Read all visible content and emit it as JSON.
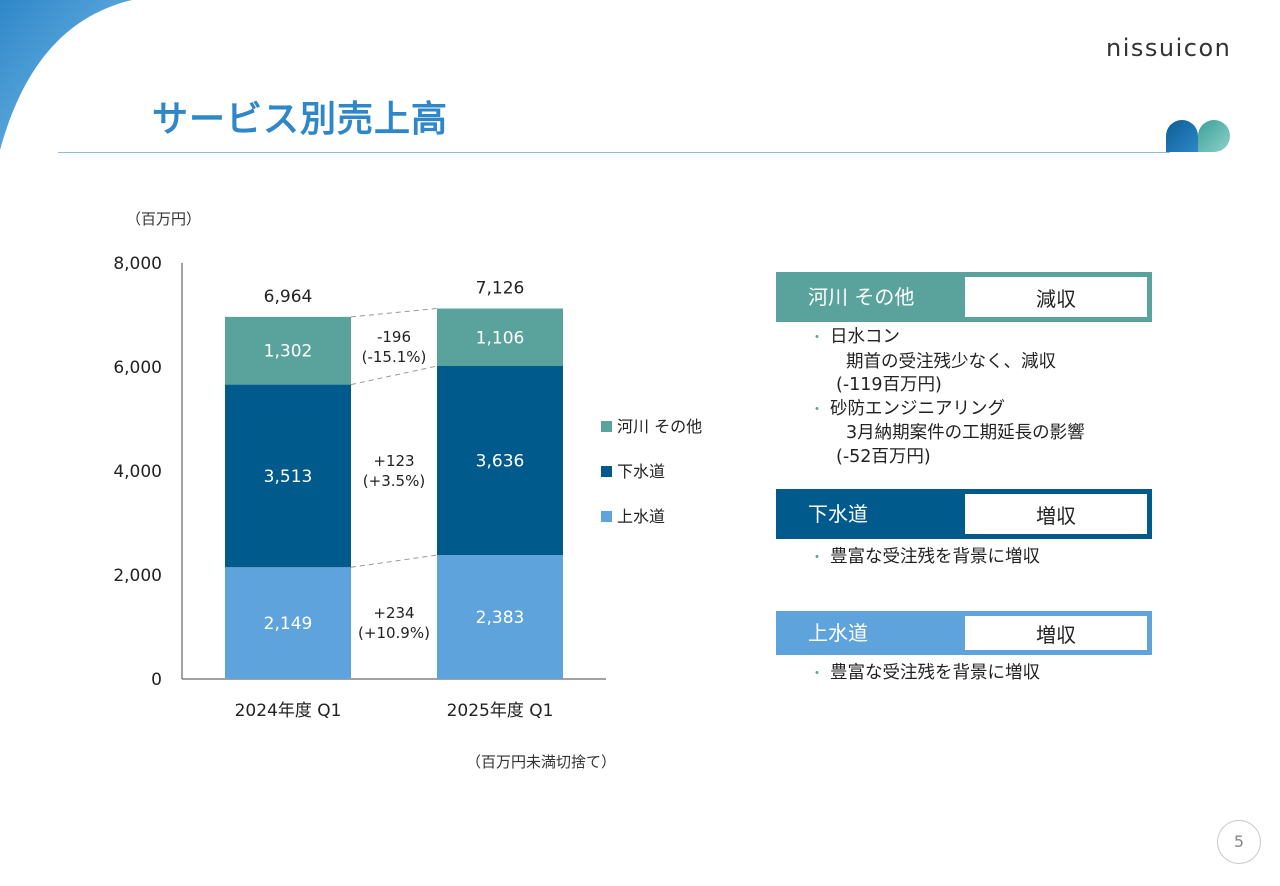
{
  "brand": {
    "logo_text": "nissuicon"
  },
  "page": {
    "title": "サービス別売上高",
    "page_number": "5"
  },
  "colors": {
    "river": "#5aa39d",
    "sewer": "#005a8c",
    "water": "#5ea3dc",
    "title": "#2f87c9"
  },
  "chart_data": {
    "type": "bar",
    "stacked": true,
    "unit_label": "（百万円）",
    "footnote": "（百万円未満切捨て）",
    "categories": [
      "2024年度 Q1",
      "2025年度 Q1"
    ],
    "ylim": [
      0,
      8000
    ],
    "yticks": [
      "0",
      "2,000",
      "4,000",
      "6,000",
      "8,000"
    ],
    "ytick_values": [
      0,
      2000,
      4000,
      6000,
      8000
    ],
    "totals": [
      "6,964",
      "7,126"
    ],
    "series": [
      {
        "name": "上水道",
        "values": [
          2149,
          2383
        ],
        "labels": [
          "2,149",
          "2,383"
        ],
        "color": "#5ea3dc",
        "change": "+234",
        "change_pct": "(+10.9%)"
      },
      {
        "name": "下水道",
        "values": [
          3513,
          3636
        ],
        "labels": [
          "3,513",
          "3,636"
        ],
        "color": "#005a8c",
        "change": "+123",
        "change_pct": "(+3.5%)"
      },
      {
        "name": "河川 その他",
        "values": [
          1302,
          1106
        ],
        "labels": [
          "1,302",
          "1,106"
        ],
        "color": "#5aa39d",
        "change": "-196",
        "change_pct": "(-15.1%)"
      }
    ],
    "legend_order": [
      "河川 その他",
      "下水道",
      "上水道"
    ]
  },
  "segments": [
    {
      "name": "河川 その他",
      "status": "減収",
      "notes": [
        {
          "type": "bullet",
          "text": "日水コン"
        },
        {
          "type": "indent",
          "text": "期首の受注残少なく、減収"
        },
        {
          "type": "paren",
          "text": "(-119百万円)"
        },
        {
          "type": "bullet",
          "text": "砂防エンジニアリング"
        },
        {
          "type": "indent",
          "text": "3月納期案件の工期延長の影響"
        },
        {
          "type": "paren",
          "text": "(-52百万円)"
        }
      ]
    },
    {
      "name": "下水道",
      "status": "増収",
      "notes": [
        {
          "type": "bullet",
          "text": "豊富な受注残を背景に増収"
        }
      ]
    },
    {
      "name": "上水道",
      "status": "増収",
      "notes": [
        {
          "type": "bullet",
          "text": "豊富な受注残を背景に増収"
        }
      ]
    }
  ]
}
